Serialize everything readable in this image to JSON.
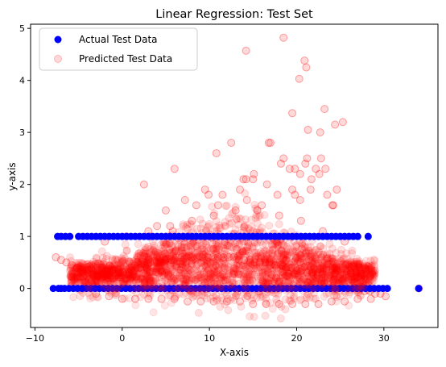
{
  "chart_data": {
    "type": "scatter",
    "title": "Linear Regression: Test Set",
    "xlabel": "X-axis",
    "ylabel": "y-axis",
    "xlim": [
      -10.5,
      36.2
    ],
    "ylim": [
      -0.75,
      5.08
    ],
    "x_ticks": [
      -10,
      0,
      10,
      20,
      30
    ],
    "x_tick_labels": [
      "−10",
      "0",
      "10",
      "20",
      "30"
    ],
    "y_ticks": [
      0,
      1,
      2,
      3,
      4,
      5
    ],
    "y_tick_labels": [
      "0",
      "1",
      "2",
      "3",
      "4",
      "5"
    ],
    "grid": false,
    "legend_position": "upper-left",
    "series": [
      {
        "name": "Actual Test Data",
        "color": "#0000ff",
        "alpha": 1.0,
        "x": [
          -7.9,
          -7.3,
          -7.0,
          -6.6,
          -6.1,
          -5.6,
          -5.1,
          -4.6,
          -4.1,
          -3.6,
          -3.1,
          -2.6,
          -2.1,
          -1.6,
          -1.1,
          -0.6,
          -0.1,
          0.4,
          0.9,
          1.4,
          1.9,
          2.4,
          2.9,
          3.4,
          3.9,
          4.4,
          4.9,
          5.4,
          5.9,
          6.4,
          6.9,
          7.4,
          7.9,
          8.4,
          8.9,
          9.4,
          9.9,
          10.4,
          10.9,
          11.4,
          11.9,
          12.4,
          12.9,
          13.4,
          13.9,
          14.4,
          14.9,
          15.4,
          15.9,
          16.4,
          16.9,
          17.4,
          17.9,
          18.4,
          18.9,
          19.4,
          19.9,
          20.4,
          20.9,
          21.4,
          21.9,
          22.4,
          22.9,
          23.4,
          23.9,
          24.4,
          24.9,
          25.4,
          25.9,
          26.4,
          26.9,
          27.4,
          27.9,
          28.4,
          28.9,
          29.4,
          29.9,
          30.4,
          34.0,
          -7.4,
          -7.0,
          -6.5,
          -6.0,
          -5.0,
          -4.5,
          -4.0,
          -3.5,
          -3.0,
          -2.5,
          -2.0,
          -1.5,
          -1.0,
          -0.5,
          0.0,
          0.5,
          1.0,
          1.5,
          2.0,
          2.5,
          3.0,
          3.5,
          4.0,
          4.5,
          5.0,
          5.5,
          6.0,
          6.5,
          7.0,
          7.5,
          8.0,
          8.5,
          9.0,
          9.5,
          10.0,
          10.5,
          11.0,
          11.5,
          12.0,
          12.5,
          13.0,
          13.5,
          14.0,
          14.5,
          15.0,
          15.5,
          16.0,
          16.5,
          17.0,
          17.5,
          18.0,
          18.5,
          19.0,
          19.5,
          20.0,
          20.5,
          21.0,
          21.5,
          22.0,
          22.5,
          23.0,
          23.5,
          24.0,
          24.5,
          25.0,
          25.5,
          26.0,
          26.5,
          27.0,
          28.2
        ],
        "y": [
          0,
          0,
          0,
          0,
          0,
          0,
          0,
          0,
          0,
          0,
          0,
          0,
          0,
          0,
          0,
          0,
          0,
          0,
          0,
          0,
          0,
          0,
          0,
          0,
          0,
          0,
          0,
          0,
          0,
          0,
          0,
          0,
          0,
          0,
          0,
          0,
          0,
          0,
          0,
          0,
          0,
          0,
          0,
          0,
          0,
          0,
          0,
          0,
          0,
          0,
          0,
          0,
          0,
          0,
          0,
          0,
          0,
          0,
          0,
          0,
          0,
          0,
          0,
          0,
          0,
          0,
          0,
          0,
          0,
          0,
          0,
          0,
          0,
          0,
          0,
          0,
          0,
          0,
          0,
          1,
          1,
          1,
          1,
          1,
          1,
          1,
          1,
          1,
          1,
          1,
          1,
          1,
          1,
          1,
          1,
          1,
          1,
          1,
          1,
          1,
          1,
          1,
          1,
          1,
          1,
          1,
          1,
          1,
          1,
          1,
          1,
          1,
          1,
          1,
          1,
          1,
          1,
          1,
          1,
          1,
          1,
          1,
          1,
          1,
          1,
          1,
          1,
          1,
          1,
          1,
          1,
          1,
          1,
          1,
          1,
          1,
          1,
          1,
          1,
          1,
          1,
          1,
          1,
          1,
          1,
          1,
          1,
          1,
          1
        ]
      },
      {
        "name": "Predicted Test Data",
        "color": "#ff0000",
        "alpha": 0.12,
        "x": [
          -7.6,
          -7.0,
          -6.4,
          -5.8,
          -5.2,
          -4.6,
          -4.0,
          -3.4,
          -2.8,
          -2.2,
          -1.6,
          -1.0,
          -0.4,
          0.2,
          0.8,
          1.4,
          2.0,
          2.6,
          3.2,
          3.8,
          4.4,
          5.0,
          5.6,
          6.2,
          6.8,
          7.4,
          8.0,
          8.6,
          9.2,
          9.8,
          10.4,
          11.0,
          11.6,
          12.2,
          12.8,
          13.4,
          14.0,
          14.6,
          15.2,
          15.8,
          16.4,
          17.0,
          17.6,
          18.2,
          18.8,
          19.4,
          20.0,
          20.6,
          21.2,
          21.8,
          22.4,
          23.0,
          23.6,
          24.2,
          24.8,
          25.4,
          26.0,
          26.6,
          27.2,
          27.8,
          28.4,
          29.0,
          29.6,
          30.2,
          34.0,
          -4.5,
          -3.0,
          -1.5,
          0.0,
          1.5,
          3.0,
          4.5,
          6.0,
          7.5,
          9.0,
          10.5,
          12.0,
          13.5,
          15.0,
          16.5,
          18.0,
          19.5,
          21.0,
          22.5,
          24.0,
          25.5,
          27.0,
          28.5,
          -2.0,
          0.5,
          3.0,
          5.5,
          8.0,
          10.5,
          13.0,
          15.5,
          18.0,
          20.5,
          23.0,
          25.5,
          2.5,
          4.0,
          5.0,
          6.0,
          7.2,
          8.5,
          9.5,
          10.8,
          11.5,
          12.5,
          13.5,
          14.3,
          15.0,
          16.0,
          17.0,
          17.8,
          18.5,
          19.2,
          19.8,
          20.4,
          21.0,
          21.6,
          22.2,
          22.8,
          23.5,
          24.2,
          3.2,
          5.8,
          9.9,
          11.0,
          14.2,
          16.6,
          18.2,
          19.5,
          20.4,
          21.2,
          22.6,
          23.3,
          24.1,
          24.6,
          14.2,
          18.5,
          19.5,
          20.9,
          21.1,
          20.3,
          21.3,
          23.2,
          25.3,
          24.4,
          22.7,
          19.8,
          21.7,
          13.9,
          16.8,
          15.1
        ],
        "y": [
          0.6,
          0.55,
          0.5,
          0.45,
          0.4,
          0.35,
          0.3,
          0.28,
          0.25,
          0.22,
          0.2,
          0.2,
          0.22,
          0.25,
          0.3,
          0.35,
          0.4,
          0.45,
          0.5,
          0.5,
          0.5,
          0.55,
          0.55,
          0.6,
          0.6,
          0.6,
          0.6,
          0.6,
          0.6,
          0.6,
          0.6,
          0.6,
          0.6,
          0.6,
          0.6,
          0.55,
          0.55,
          0.55,
          0.5,
          0.5,
          0.5,
          0.45,
          0.45,
          0.45,
          0.4,
          0.4,
          0.35,
          0.35,
          0.3,
          0.3,
          0.25,
          0.2,
          0.2,
          0.15,
          0.1,
          0.1,
          0.05,
          0.0,
          0.0,
          -0.05,
          -0.05,
          -0.1,
          -0.1,
          -0.15,
          0.0,
          0.0,
          -0.1,
          -0.15,
          -0.2,
          -0.2,
          -0.2,
          -0.2,
          -0.2,
          -0.25,
          -0.25,
          -0.25,
          -0.25,
          -0.25,
          -0.3,
          -0.3,
          -0.3,
          -0.3,
          -0.3,
          -0.3,
          -0.25,
          -0.25,
          -0.2,
          -0.2,
          0.9,
          1.0,
          1.1,
          1.2,
          1.3,
          1.4,
          1.5,
          1.5,
          1.4,
          1.3,
          1.1,
          0.9,
          2.0,
          1.2,
          1.5,
          2.3,
          1.7,
          1.6,
          1.9,
          2.6,
          1.8,
          2.8,
          1.9,
          1.7,
          2.1,
          1.6,
          2.8,
          1.8,
          2.5,
          2.3,
          1.8,
          2.2,
          2.4,
          1.9,
          2.3,
          2.5,
          1.8,
          1.6,
          1.0,
          1.1,
          1.8,
          1.6,
          2.1,
          2.0,
          2.4,
          1.9,
          1.7,
          2.5,
          2.2,
          2.3,
          1.6,
          1.9,
          4.57,
          4.82,
          3.37,
          4.38,
          4.25,
          4.03,
          3.05,
          3.45,
          3.2,
          3.15,
          3.0,
          2.3,
          2.1,
          2.1,
          2.8,
          2.2
        ]
      }
    ]
  }
}
